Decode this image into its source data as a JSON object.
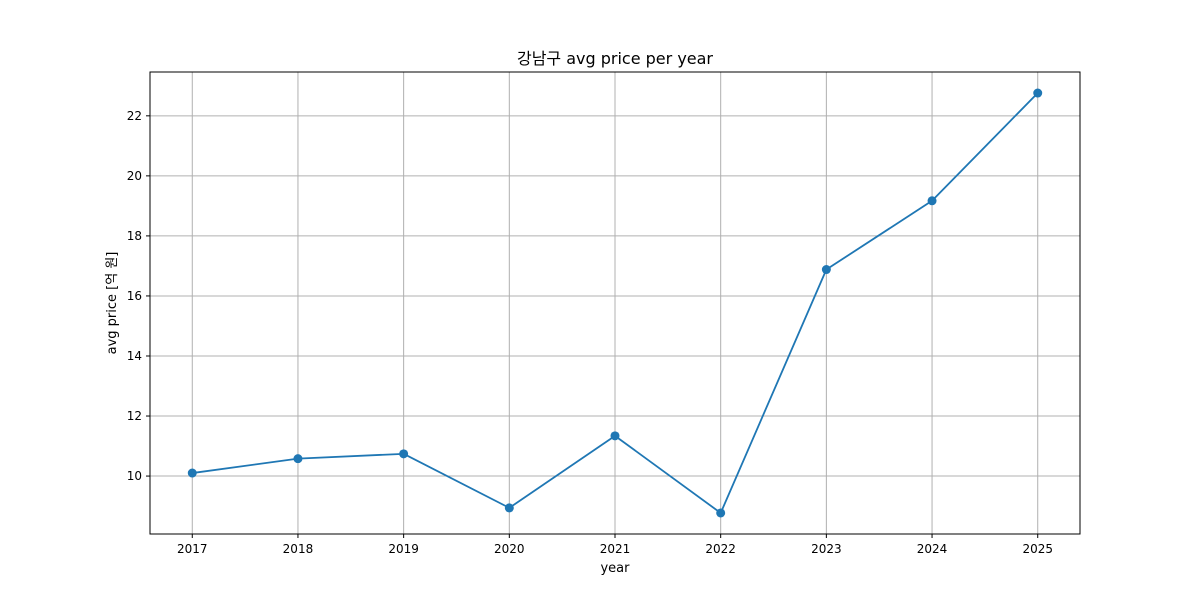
{
  "chart_data": {
    "type": "line",
    "title": "강남구 avg price per year",
    "xlabel": "year",
    "ylabel": "avg price [억 원]",
    "x": [
      2017,
      2018,
      2019,
      2020,
      2021,
      2022,
      2023,
      2024,
      2025
    ],
    "series": [
      {
        "values": [
          10.1,
          10.58,
          10.74,
          8.94,
          11.34,
          8.77,
          16.88,
          19.17,
          22.76
        ],
        "color": "#1f77b4",
        "marker": "circle"
      }
    ],
    "x_ticks": [
      "2017",
      "2018",
      "2019",
      "2020",
      "2021",
      "2022",
      "2023",
      "2024",
      "2025"
    ],
    "y_ticks": [
      "10",
      "12",
      "14",
      "16",
      "18",
      "20",
      "22"
    ],
    "xlim": [
      2016.6,
      2025.4
    ],
    "ylim": [
      8.07,
      23.46
    ],
    "grid": true
  }
}
